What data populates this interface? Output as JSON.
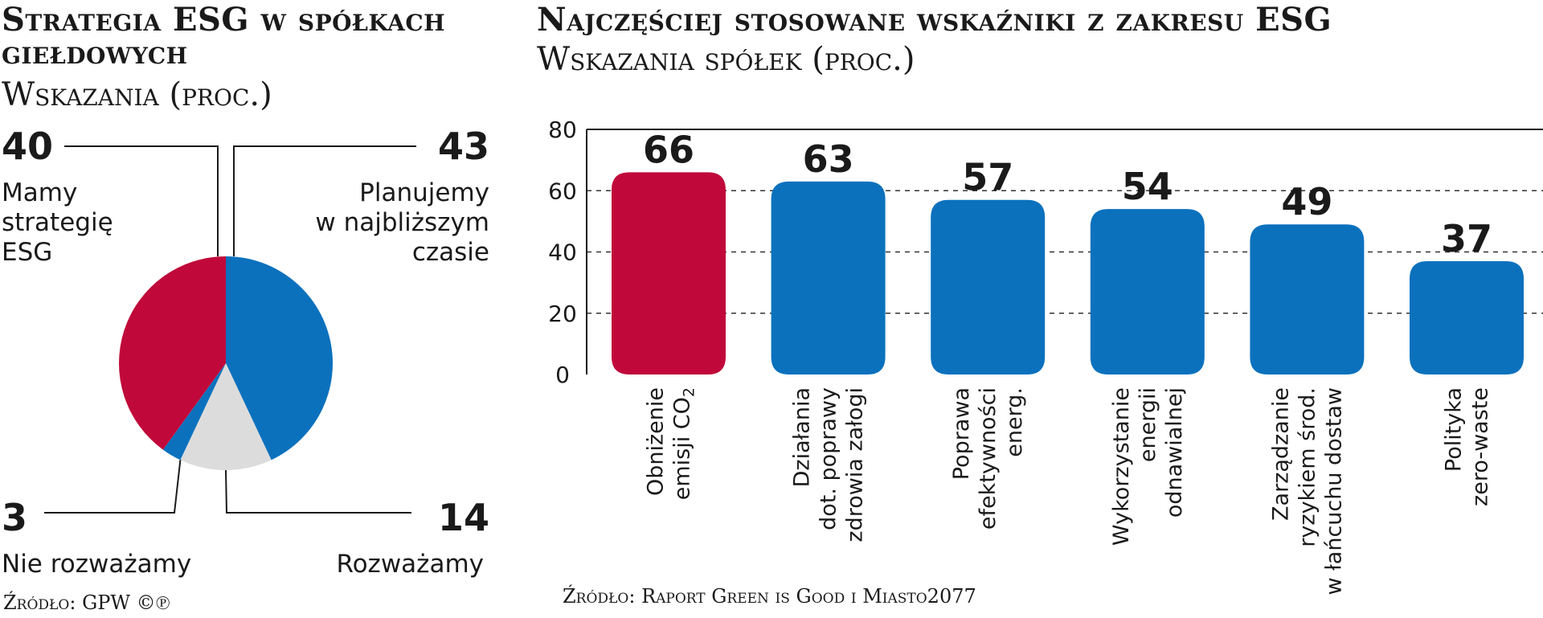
{
  "colors": {
    "accent": "#c0093a",
    "primary": "#0b71bd",
    "neutral": "#dcdcdc"
  },
  "left": {
    "title_lines": [
      "Strategia ESG w spółkach",
      "giełdowych"
    ],
    "subtitle": "Wskazania (proc.)",
    "source": "Źródło: GPW ©℗"
  },
  "right": {
    "title": "Najczęściej stosowane wskaźniki z zakresu ESG",
    "subtitle": "Wskazania spółek (proc.)",
    "source": "Źródło: Raport Green is Good i Miasto2077"
  },
  "chart_data": [
    {
      "type": "pie",
      "title": "Strategia ESG w spółkach giełdowych",
      "subtitle": "Wskazania (proc.)",
      "slices": [
        {
          "value_label": "43",
          "value": 43,
          "label_lines": [
            "Planujemy",
            "w najbliższym",
            "czasie"
          ],
          "color": "#0b71bd"
        },
        {
          "value_label": "14",
          "value": 14,
          "label_lines": [
            "Rozważamy"
          ],
          "color": "#dcdcdc"
        },
        {
          "value_label": "3",
          "value": 3,
          "label_lines": [
            "Nie rozważamy"
          ],
          "color": "#0b71bd"
        },
        {
          "value_label": "40",
          "value": 40,
          "label_lines": [
            "Mamy",
            "strategię",
            "ESG"
          ],
          "color": "#c0093a"
        }
      ]
    },
    {
      "type": "bar",
      "title": "Najczęściej stosowane wskaźniki z zakresu ESG",
      "subtitle": "Wskazania spółek (proc.)",
      "ylim": [
        0,
        80
      ],
      "yticks": [
        0,
        20,
        40,
        60,
        80
      ],
      "ytick_labels": [
        "0",
        "20",
        "40",
        "60",
        "80"
      ],
      "grid": true,
      "categories": [
        {
          "lines": [
            "Obniżenie",
            "emisji CO",
            "2"
          ],
          "subscript_last": true
        },
        {
          "lines": [
            "Działania",
            "dot. poprawy",
            "zdrowia załogi"
          ]
        },
        {
          "lines": [
            "Poprawa",
            "efektywności",
            "energ."
          ]
        },
        {
          "lines": [
            "Wykorzystanie",
            "energii",
            "odnawialnej"
          ]
        },
        {
          "lines": [
            "Zarządzanie",
            "ryzykiem środ.",
            "w łańcuchu dostaw"
          ]
        },
        {
          "lines": [
            "Polityka",
            "zero-waste"
          ]
        }
      ],
      "values": [
        66,
        63,
        57,
        54,
        49,
        37
      ],
      "value_labels": [
        "66",
        "63",
        "57",
        "54",
        "49",
        "37"
      ],
      "colors": [
        "#c0093a",
        "#0b71bd",
        "#0b71bd",
        "#0b71bd",
        "#0b71bd",
        "#0b71bd"
      ]
    }
  ]
}
